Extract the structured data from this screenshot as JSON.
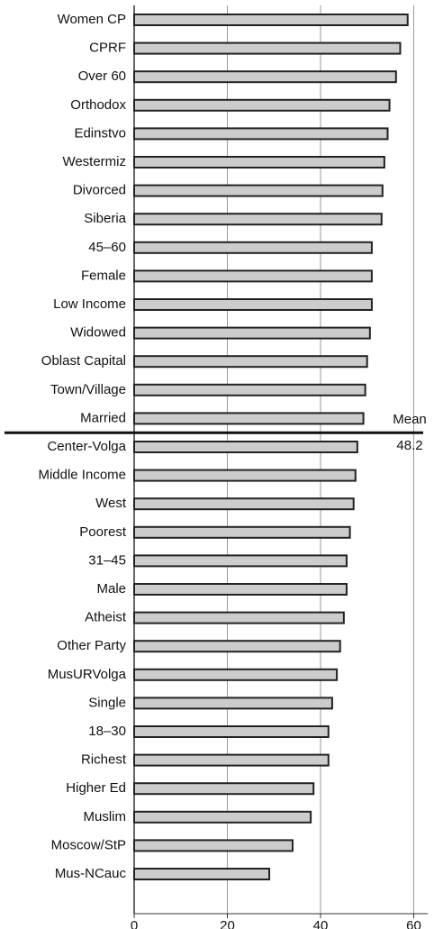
{
  "chart_data": {
    "type": "bar",
    "orientation": "horizontal",
    "categories": [
      "Women CP",
      "CPRF",
      "Over 60",
      "Orthodox",
      "Edinstvo",
      "Westermiz",
      "Divorced",
      "Siberia",
      "45–60",
      "Female",
      "Low Income",
      "Widowed",
      "Oblast Capital",
      "Town/Village",
      "Married",
      "Center-Volga",
      "Middle Income",
      "West",
      "Poorest",
      "31–45",
      "Male",
      "Atheist",
      "Other Party",
      "MusURVolga",
      "Single",
      "18–30",
      "Richest",
      "Higher Ed",
      "Muslim",
      "Moscow/StP",
      "Mus-NCauc"
    ],
    "values": [
      58.7,
      57.1,
      56.2,
      54.8,
      54.4,
      53.7,
      53.3,
      53.1,
      51.0,
      51.0,
      51.0,
      50.6,
      50.0,
      49.6,
      49.2,
      47.9,
      47.5,
      47.1,
      46.3,
      45.6,
      45.6,
      45.0,
      44.2,
      43.5,
      42.5,
      41.7,
      41.7,
      38.5,
      37.9,
      34.0,
      29.0
    ],
    "color": "#cccccc",
    "xlim": [
      0,
      63
    ],
    "xticks": [
      0,
      20,
      40,
      60
    ],
    "grid": true,
    "mean": {
      "label": "Mean",
      "value": 48.2
    }
  }
}
